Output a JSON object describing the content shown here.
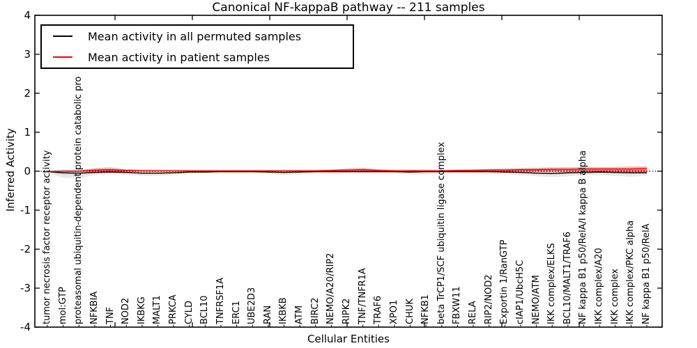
{
  "chart_data": {
    "type": "line",
    "title": "Canonical NF-kappaB pathway -- 211 samples",
    "xlabel": "Cellular Entities",
    "ylabel": "Inferred Activity",
    "ylim": [
      -4,
      4
    ],
    "y_ticks": [
      4,
      3,
      2,
      1,
      0,
      -1,
      -2,
      -3,
      -4
    ],
    "grid": false,
    "zero_line_style": "dotted",
    "legend_position": "upper left",
    "categories": [
      "tumor necrosis factor receptor activity",
      "mol:GTP",
      "proteasomal ubiquitin-dependent protein catabolic pro",
      "NFKBIA",
      "TNF",
      "NOD2",
      "IKBKG",
      "MALT1",
      "PRKCA",
      "CYLD",
      "BCL10",
      "TNFRSF1A",
      "ERC1",
      "UBE2D3",
      "RAN",
      "IKBKB",
      "ATM",
      "BIRC2",
      "NEMO/A20/RIP2",
      "RIPK2",
      "TNF/TNFR1A",
      "TRAF6",
      "XPO1",
      "CHUK",
      "NFKB1",
      "beta TrCP1/SCF ubiquitin ligase complex",
      "FBXW11",
      "RELA",
      "RIP2/NOD2",
      "Exportin 1/RanGTP",
      "cIAP1/UbcH5C",
      "NEMO/ATM",
      "IKK complex/ELKS",
      "BCL10/MALT1/TRAF6",
      "NF kappa B1 p50/RelA/I kappa B alpha",
      "IKK complex/A20",
      "IKK complex",
      "IKK complex/PKC alpha",
      "NF kappa B1 p50/RelA"
    ],
    "series": [
      {
        "name": "Mean activity in all permuted samples",
        "color": "#000000",
        "values": [
          -0.01,
          -0.04,
          -0.05,
          -0.03,
          -0.02,
          -0.03,
          -0.05,
          -0.05,
          -0.04,
          -0.02,
          -0.02,
          -0.01,
          -0.01,
          -0.01,
          -0.02,
          -0.03,
          -0.02,
          -0.01,
          -0.01,
          -0.01,
          -0.01,
          -0.01,
          -0.01,
          -0.02,
          -0.01,
          -0.01,
          -0.01,
          -0.01,
          -0.01,
          -0.02,
          -0.03,
          -0.05,
          -0.06,
          -0.04,
          -0.03,
          -0.02,
          -0.03,
          -0.04,
          -0.04
        ]
      },
      {
        "name": "Mean activity in patient samples",
        "color": "#ff0000",
        "values": [
          -0.01,
          0.0,
          0.0,
          0.03,
          0.04,
          0.02,
          0.01,
          0.01,
          0.01,
          0.01,
          0.01,
          0.01,
          0.01,
          0.01,
          0.01,
          0.01,
          0.01,
          0.01,
          0.02,
          0.03,
          0.04,
          0.02,
          0.01,
          0.01,
          0.01,
          0.01,
          0.02,
          0.02,
          0.03,
          0.03,
          0.04,
          0.04,
          0.05,
          0.05,
          0.06,
          0.06,
          0.06,
          0.06,
          0.07
        ]
      }
    ],
    "bands": [
      {
        "series": "Mean activity in all permuted samples",
        "color": "#000000",
        "opacity": 0.09,
        "low": [
          -0.04,
          -0.17,
          -0.18,
          -0.1,
          -0.08,
          -0.09,
          -0.12,
          -0.12,
          -0.1,
          -0.07,
          -0.06,
          -0.06,
          -0.07,
          -0.06,
          -0.07,
          -0.1,
          -0.08,
          -0.06,
          -0.07,
          -0.06,
          -0.06,
          -0.06,
          -0.06,
          -0.09,
          -0.08,
          -0.06,
          -0.06,
          -0.06,
          -0.07,
          -0.08,
          -0.1,
          -0.13,
          -0.15,
          -0.13,
          -0.1,
          -0.1,
          -0.12,
          -0.14,
          -0.11
        ],
        "high": [
          0.03,
          0.05,
          0.05,
          0.05,
          0.05,
          0.05,
          0.06,
          0.06,
          0.05,
          0.04,
          0.04,
          0.04,
          0.04,
          0.04,
          0.04,
          0.05,
          0.04,
          0.04,
          0.04,
          0.04,
          0.04,
          0.04,
          0.04,
          0.05,
          0.05,
          0.04,
          0.04,
          0.04,
          0.05,
          0.05,
          0.06,
          0.07,
          0.07,
          0.06,
          0.06,
          0.06,
          0.06,
          0.07,
          0.07
        ]
      },
      {
        "series": "Mean activity in patient samples",
        "color": "#ff0000",
        "opacity": 0.3,
        "low": [
          -0.02,
          -0.01,
          -0.01,
          -0.02,
          -0.02,
          -0.01,
          0.0,
          0.0,
          0.0,
          0.0,
          0.0,
          0.0,
          0.0,
          0.0,
          0.0,
          0.0,
          0.0,
          0.0,
          0.0,
          -0.01,
          -0.01,
          0.0,
          0.0,
          0.0,
          0.0,
          0.0,
          0.0,
          0.0,
          0.0,
          -0.01,
          -0.01,
          -0.01,
          -0.01,
          -0.01,
          -0.01,
          -0.02,
          -0.02,
          -0.02,
          -0.02
        ],
        "high": [
          0.01,
          0.01,
          0.02,
          0.08,
          0.1,
          0.05,
          0.03,
          0.02,
          0.02,
          0.02,
          0.02,
          0.02,
          0.02,
          0.02,
          0.02,
          0.02,
          0.02,
          0.03,
          0.04,
          0.07,
          0.09,
          0.05,
          0.03,
          0.03,
          0.03,
          0.03,
          0.04,
          0.05,
          0.06,
          0.07,
          0.08,
          0.09,
          0.1,
          0.1,
          0.11,
          0.11,
          0.11,
          0.12,
          0.12
        ]
      }
    ],
    "legend": {
      "entries": [
        {
          "label": "Mean activity in all permuted samples",
          "color": "#000000"
        },
        {
          "label": "Mean activity in patient samples",
          "color": "#ff0000"
        }
      ]
    }
  }
}
